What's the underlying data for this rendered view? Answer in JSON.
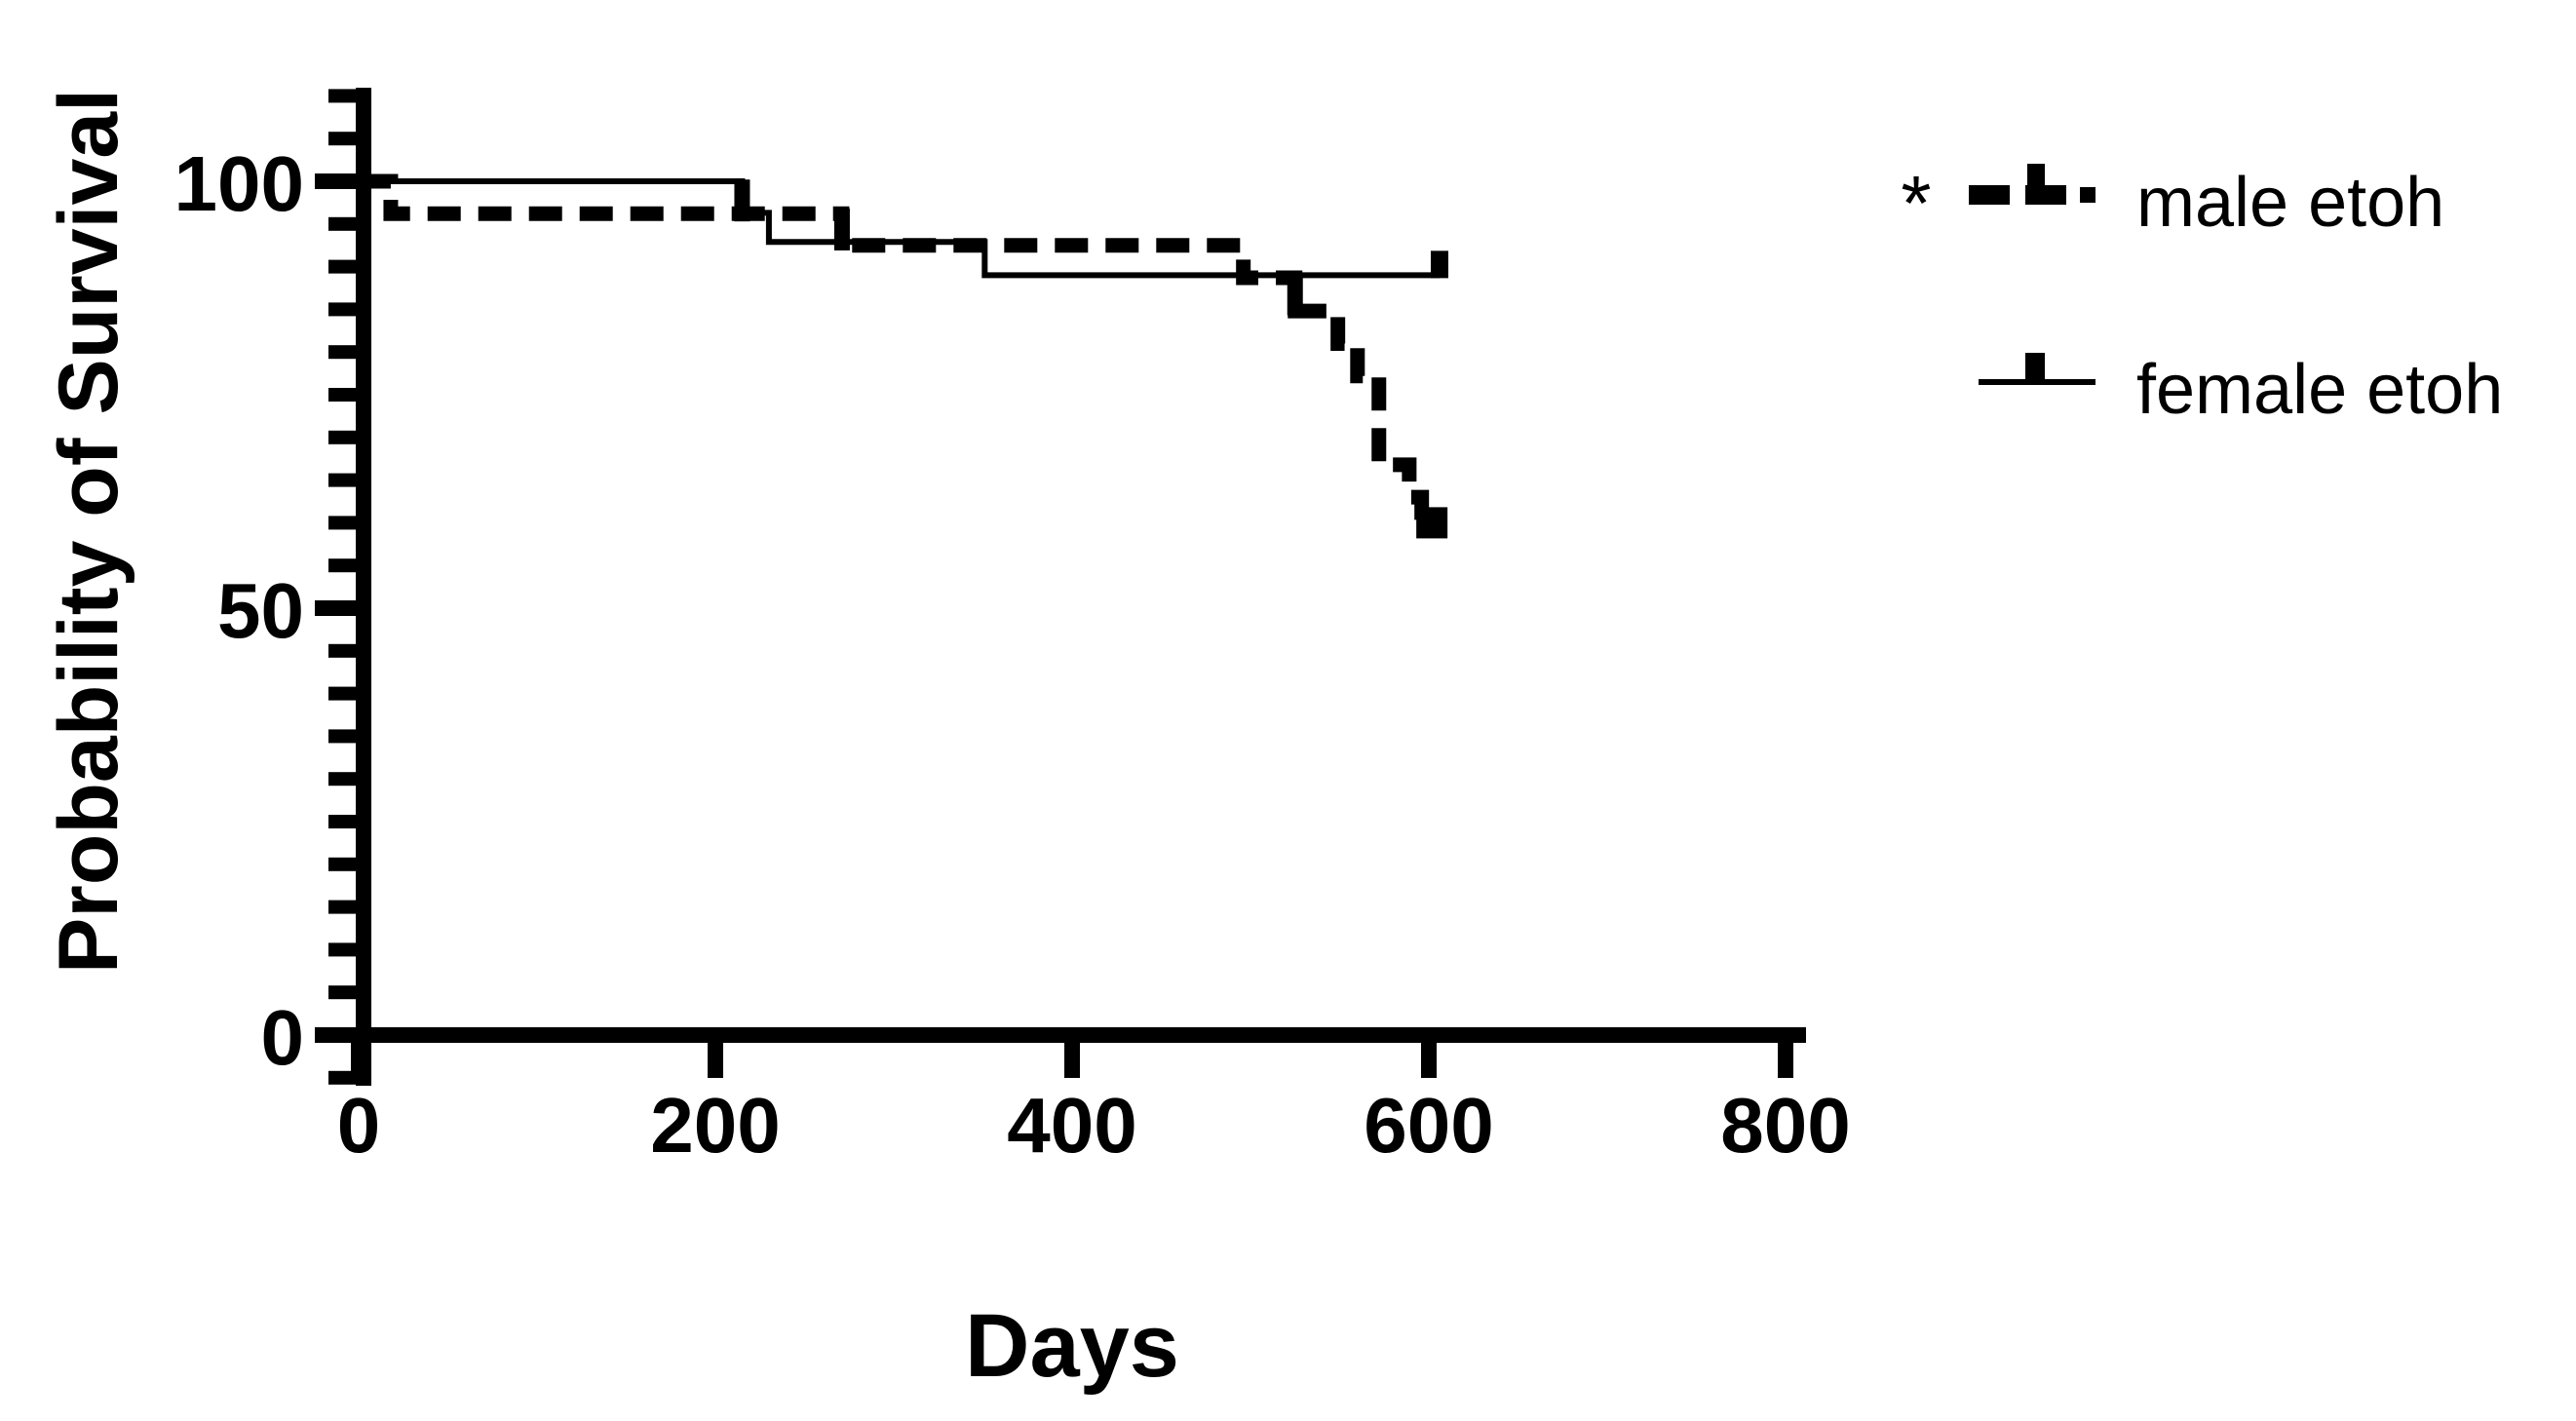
{
  "figure": {
    "background": "#ffffff",
    "ink_color": "#000000"
  },
  "legend": {
    "position": "top-right",
    "significance_marker": "*",
    "entries": [
      {
        "label": "male etoh",
        "symbol": "thick-dashed-line-with-censor-tick"
      },
      {
        "label": "female etoh",
        "symbol": "thin-solid-line-with-censor-tick"
      }
    ]
  },
  "chart_data": {
    "type": "line",
    "subtype": "kaplan-meier-survival-step",
    "title": "",
    "xlabel": "Days",
    "ylabel": "Probability of Survival",
    "xlim": [
      0,
      800
    ],
    "ylim": [
      0,
      100
    ],
    "x_ticks": [
      0,
      200,
      400,
      600,
      800
    ],
    "y_ticks": [
      0,
      50,
      100
    ],
    "y_minor_ticks": {
      "from": -5,
      "to": 110,
      "step": 5
    },
    "grid": false,
    "legend_position": "top-right",
    "series": [
      {
        "name": "male etoh",
        "style": "thick-dashed",
        "color": "#000000",
        "significance": "*",
        "steps": [
          [
            0,
            100
          ],
          [
            18,
            96.2
          ],
          [
            271,
            92.5
          ],
          [
            496,
            88.7
          ],
          [
            525,
            84.8
          ],
          [
            549,
            81.0
          ],
          [
            560,
            77.2
          ],
          [
            572,
            66.8
          ],
          [
            589,
            63.0
          ],
          [
            596,
            60.0
          ]
        ],
        "end_day": 605,
        "end_marker": "filled-square",
        "censor_marks": [
          {
            "day": 271,
            "from": 96.8,
            "to": 91.9
          },
          {
            "day": 525,
            "from": 89.2,
            "to": 84.3
          }
        ]
      },
      {
        "name": "female etoh",
        "style": "thin-solid",
        "color": "#000000",
        "significance": "",
        "steps": [
          [
            0,
            100
          ],
          [
            215,
            96.3
          ],
          [
            230,
            92.9
          ],
          [
            351,
            89.0
          ]
        ],
        "end_day": 606,
        "end_marker": "up-tick",
        "censor_marks": [
          {
            "day": 215,
            "from": 100.2,
            "to": 95.3
          }
        ]
      }
    ]
  }
}
